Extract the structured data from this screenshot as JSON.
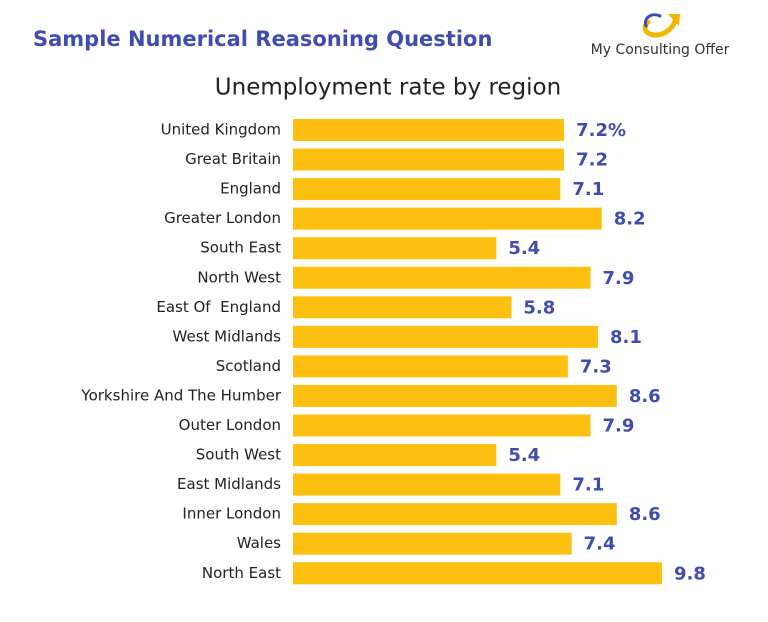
{
  "header": {
    "title": "Sample Numerical Reasoning Question",
    "logo": "My Consulting Offer"
  },
  "chart_data": {
    "type": "bar",
    "orientation": "horizontal",
    "title": "Unemployment rate by region",
    "categories": [
      "United Kingdom",
      "Great Britain",
      "England",
      "Greater London",
      "South East",
      "North West",
      "East Of  England",
      "West Midlands",
      "Scotland",
      "Yorkshire And The Humber",
      "Outer London",
      "South West",
      "East Midlands",
      "Inner London",
      "Wales",
      "North East"
    ],
    "values": [
      7.2,
      7.2,
      7.1,
      8.2,
      5.4,
      7.9,
      5.8,
      8.1,
      7.3,
      8.6,
      7.9,
      5.4,
      7.1,
      8.6,
      7.4,
      9.8
    ],
    "value_labels": [
      "7.2%",
      "7.2",
      "7.1",
      "8.2",
      "5.4",
      "7.9",
      "5.8",
      "8.1",
      "7.3",
      "8.6",
      "7.9",
      "5.4",
      "7.1",
      "8.6",
      "7.4",
      "9.8"
    ],
    "color": "#fdc010"
  }
}
